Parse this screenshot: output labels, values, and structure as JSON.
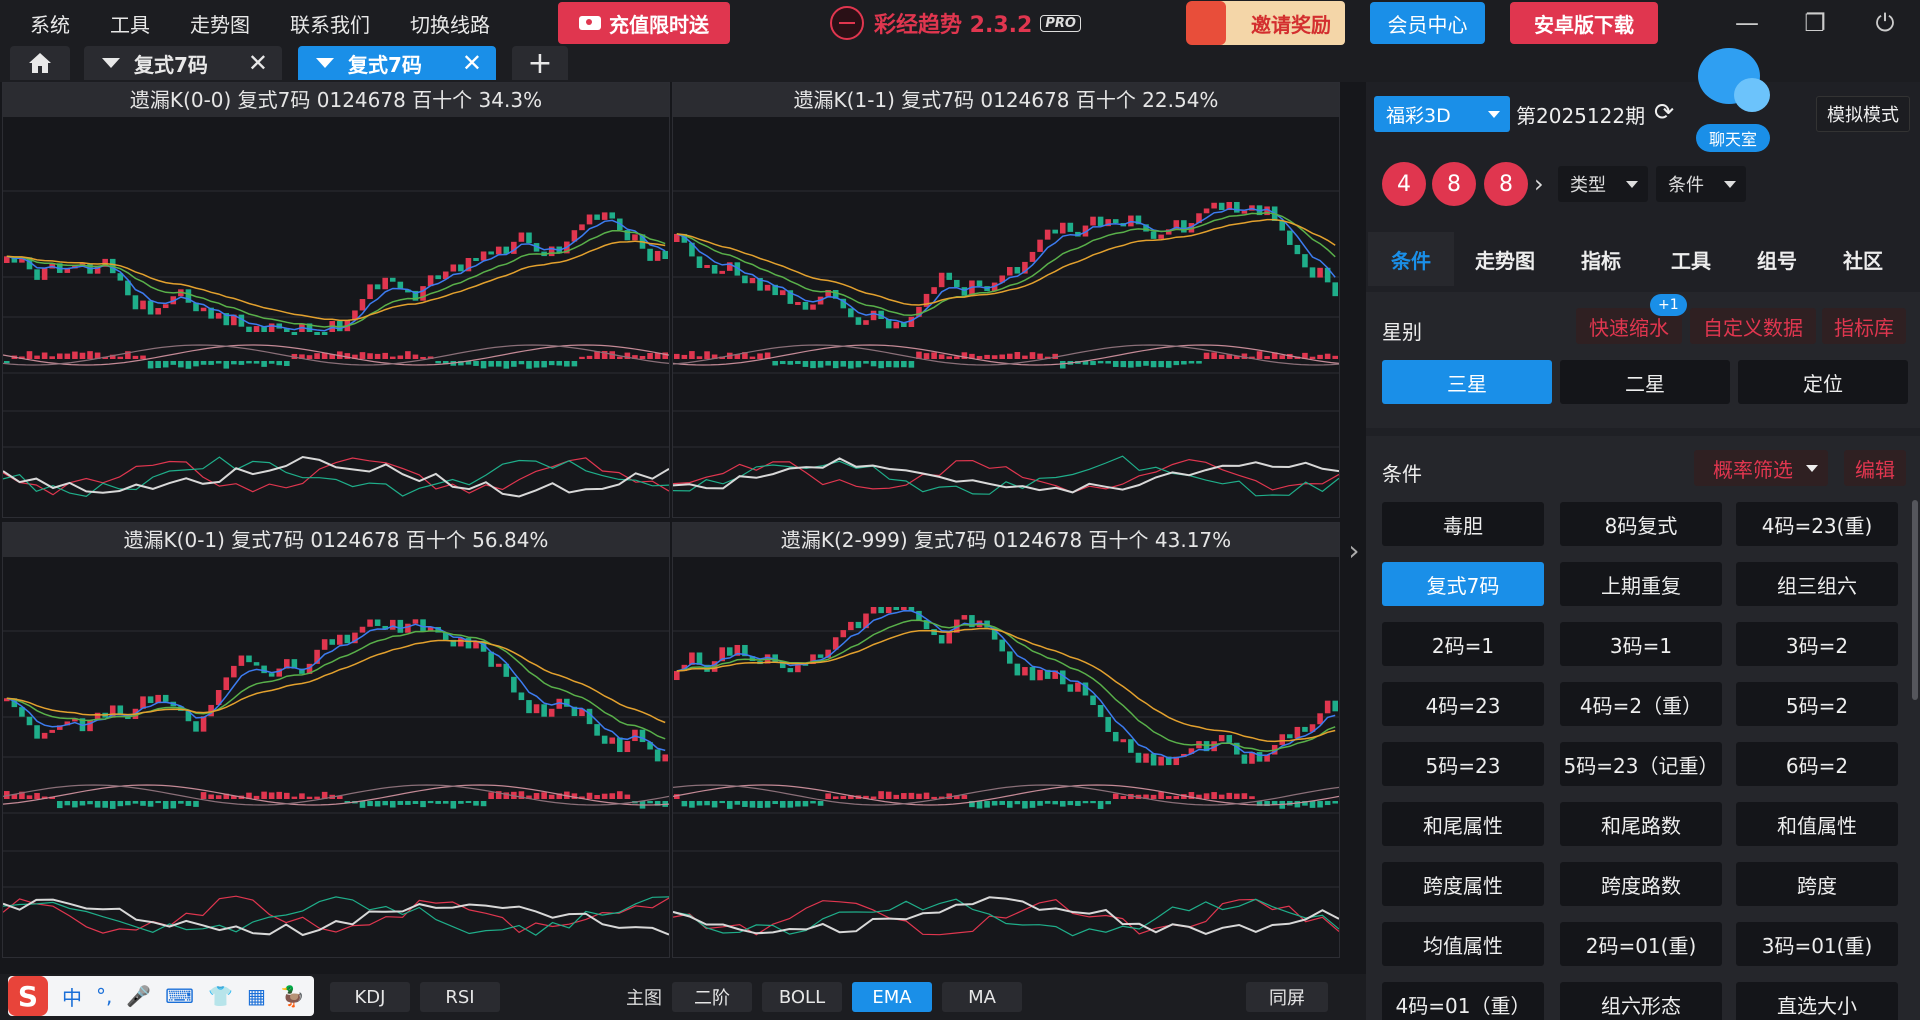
{
  "menu": [
    "系统",
    "工具",
    "走势图",
    "联系我们",
    "切换线路"
  ],
  "recharge": "充值限时送",
  "brand": {
    "name": "彩经趋势 2.3.2",
    "badge": "PRO"
  },
  "invite": "邀请奖励",
  "member": "会员中心",
  "android": "安卓版下载",
  "window_controls": {
    "minimize": "—",
    "restore": "❐",
    "power": "⏻"
  },
  "tabs": [
    {
      "label": "复式7码",
      "active": false
    },
    {
      "label": "复式7码",
      "active": true
    }
  ],
  "tab_close": "✕",
  "tab_add": "+",
  "panels": [
    {
      "title": "遗漏K(0-0)  复式7码  0124678  百十个  34.3%"
    },
    {
      "title": "遗漏K(1-1)  复式7码  0124678  百十个  22.54%"
    },
    {
      "title": "遗漏K(0-1)  复式7码  0124678  百十个  56.84%"
    },
    {
      "title": "遗漏K(2-999)  复式7码  0124678  百十个  43.17%"
    }
  ],
  "bottom": {
    "indicators": [
      "KDJ",
      "RSI"
    ],
    "main_label": "主图",
    "main": [
      "二阶",
      "BOLL",
      "EMA",
      "MA"
    ],
    "active_main": "EMA",
    "same_screen": "同屏"
  },
  "ime": {
    "logo": "S",
    "items": [
      "中",
      "°,",
      "🎤",
      "⌨",
      "👕",
      "▦",
      "🦆"
    ]
  },
  "side": {
    "lottery": "福彩3D",
    "period": "第2025122期",
    "refresh": "⟳",
    "chat": "聊天室",
    "sim": "模拟模式",
    "balls": [
      "4",
      "8",
      "8"
    ],
    "type_dd": "类型",
    "cond_dd": "条件",
    "nav": [
      "条件",
      "走势图",
      "指标",
      "工具",
      "组号",
      "社区"
    ],
    "nav_active": "条件",
    "star_label": "星别",
    "star_tags": [
      "快速缩水",
      "自定义数据",
      "指标库"
    ],
    "badge": "+1",
    "stars": [
      "三星",
      "二星",
      "定位"
    ],
    "star_active": "三星",
    "cond_label": "条件",
    "prob": "概率筛选",
    "edit": "编辑",
    "conditions": [
      "毒胆",
      "8码复式",
      "4码=23(重)",
      "复式7码",
      "上期重复",
      "组三组六",
      "2码=1",
      "3码=1",
      "3码=2",
      "4码=23",
      "4码=2（重）",
      "5码=2",
      "5码=23",
      "5码=23（记重）",
      "6码=2",
      "和尾属性",
      "和尾路数",
      "和值属性",
      "跨度属性",
      "跨度路数",
      "跨度",
      "均值属性",
      "2码=01(重)",
      "3码=01(重)",
      "4码=01（重）",
      "组六形态",
      "直选大小"
    ],
    "cond_active": "复式7码"
  },
  "colors": {
    "accent": "#1a8fe8",
    "red": "#e0364f",
    "green": "#1fae8a",
    "ema1": "#3d7cf0",
    "ema2": "#59b04a",
    "ema3": "#e3a12e"
  }
}
